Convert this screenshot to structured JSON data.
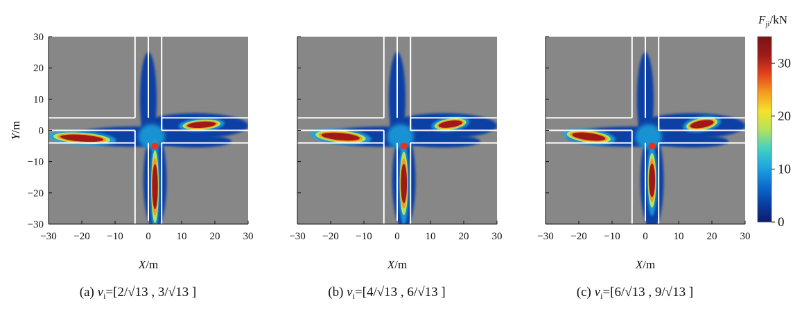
{
  "chart_data": [
    {
      "type": "heatmap",
      "caption": {
        "label": "(a)",
        "var": "v",
        "sub": "i",
        "a": "2",
        "b": "3",
        "root": "13"
      },
      "xlabel": {
        "var": "X",
        "unit": "m"
      },
      "ylabel": {
        "var": "Y",
        "unit": "m"
      },
      "xlim": [
        -30,
        30
      ],
      "ylim": [
        -30,
        30
      ],
      "xticks": [
        -30,
        -20,
        -10,
        0,
        10,
        20,
        30
      ],
      "yticks": [
        30,
        20,
        10,
        0,
        -10,
        -20,
        -30
      ],
      "xtick_labels": [
        "−30",
        "−20",
        "−10",
        "0",
        "10",
        "20",
        "30"
      ],
      "ytick_labels": [
        "30",
        "20",
        "10",
        "0",
        "−10",
        "−20",
        "−30"
      ],
      "target_point": {
        "x": 2,
        "y": -5
      },
      "road_lines": {
        "vertical_x": [
          -4,
          0,
          4
        ],
        "horizontal_y": [
          4,
          0,
          -4
        ]
      },
      "blobs": [
        {
          "x": -20,
          "y": -2.5,
          "sx": 9,
          "sy": 1.2,
          "rot": 4,
          "peak": 35
        },
        {
          "x": 16,
          "y": 1.8,
          "sx": 6,
          "sy": 1.1,
          "rot": -4,
          "peak": 33
        },
        {
          "x": 2,
          "y": -18,
          "sx": 1.2,
          "sy": 8,
          "rot": 0,
          "peak": 35
        }
      ],
      "show_y_labels": true
    },
    {
      "type": "heatmap",
      "caption": {
        "label": "(b)",
        "var": "v",
        "sub": "i",
        "a": "4",
        "b": "6",
        "root": "13"
      },
      "xlabel": {
        "var": "X",
        "unit": "m"
      },
      "xlim": [
        -30,
        30
      ],
      "ylim": [
        -30,
        30
      ],
      "xticks": [
        -30,
        -20,
        -10,
        0,
        10,
        20,
        30
      ],
      "xtick_labels": [
        "−30",
        "−20",
        "−10",
        "0",
        "10",
        "20",
        "30"
      ],
      "target_point": {
        "x": 2,
        "y": -5
      },
      "road_lines": {
        "vertical_x": [
          -4,
          0,
          4
        ],
        "horizontal_y": [
          4,
          0,
          -4
        ]
      },
      "blobs": [
        {
          "x": -17,
          "y": -2,
          "sx": 8,
          "sy": 1.3,
          "rot": 5,
          "peak": 35
        },
        {
          "x": 16,
          "y": 2,
          "sx": 5,
          "sy": 1.2,
          "rot": -8,
          "peak": 33
        },
        {
          "x": 2,
          "y": -17,
          "sx": 1.3,
          "sy": 7,
          "rot": 0,
          "peak": 35
        }
      ],
      "show_y_labels": false
    },
    {
      "type": "heatmap",
      "caption": {
        "label": "(c)",
        "var": "v",
        "sub": "i",
        "a": "6",
        "b": "9",
        "root": "13"
      },
      "xlabel": {
        "var": "X",
        "unit": "m"
      },
      "xlim": [
        -30,
        30
      ],
      "ylim": [
        -30,
        30
      ],
      "xticks": [
        -30,
        -20,
        -10,
        0,
        10,
        20,
        30
      ],
      "xtick_labels": [
        "−30",
        "−20",
        "−10",
        "0",
        "10",
        "20",
        "30"
      ],
      "target_point": {
        "x": 2,
        "y": -5
      },
      "road_lines": {
        "vertical_x": [
          -4,
          0,
          4
        ],
        "horizontal_y": [
          4,
          0,
          -4
        ]
      },
      "blobs": [
        {
          "x": -17,
          "y": -2,
          "sx": 7,
          "sy": 1.3,
          "rot": 7,
          "peak": 35
        },
        {
          "x": 17,
          "y": 2,
          "sx": 5,
          "sy": 1.3,
          "rot": -10,
          "peak": 33
        },
        {
          "x": 2,
          "y": -16,
          "sx": 1.3,
          "sy": 6,
          "rot": 0,
          "peak": 35
        }
      ],
      "show_y_labels": false
    }
  ],
  "colorbar": {
    "label_var": "F",
    "label_sub": "ji",
    "label_unit": "kN",
    "min": 0,
    "max": 35,
    "ticks": [
      0,
      10,
      20,
      30
    ],
    "tick_labels": [
      "0",
      "10",
      "20",
      "30"
    ]
  },
  "colors": {
    "background": "#878787",
    "road_lines": "#ffffff",
    "target_point": "#e8311f",
    "colormap": [
      "#0d1b6b",
      "#0a3fa5",
      "#0e6fd0",
      "#1fa7e0",
      "#47d1c0",
      "#b5e35a",
      "#f5e12a",
      "#f59a1f",
      "#e2421c",
      "#9e1a1a",
      "#7a1414"
    ]
  }
}
